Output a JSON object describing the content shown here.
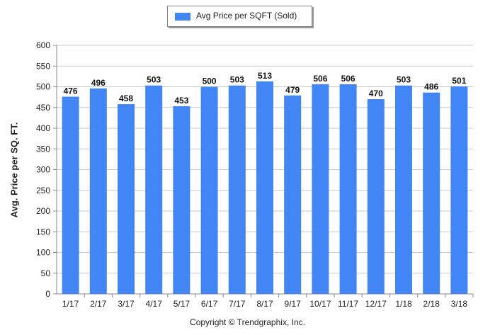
{
  "chart_data": {
    "type": "bar",
    "legend": [
      "Avg Price per SQFT (Sold)"
    ],
    "legend_position": "top-center",
    "ylabel": "Avg. Price per SQ. FT.",
    "xlabel": "",
    "categories": [
      "1/17",
      "2/17",
      "3/17",
      "4/17",
      "5/17",
      "6/17",
      "7/17",
      "8/17",
      "9/17",
      "10/17",
      "11/17",
      "12/17",
      "1/18",
      "2/18",
      "3/18"
    ],
    "series": [
      {
        "name": "Avg Price per SQFT (Sold)",
        "values": [
          476,
          496,
          458,
          503,
          453,
          500,
          503,
          513,
          479,
          506,
          506,
          470,
          503,
          486,
          501
        ]
      }
    ],
    "ylim": [
      0,
      600
    ],
    "yticks": [
      0,
      50,
      100,
      150,
      200,
      250,
      300,
      350,
      400,
      450,
      500,
      550,
      600
    ],
    "grid": true,
    "bar_color": "#4285f4",
    "grid_color": "#c9c9c9"
  },
  "footer": {
    "copyright": "Copyright © Trendgraphix, Inc."
  }
}
